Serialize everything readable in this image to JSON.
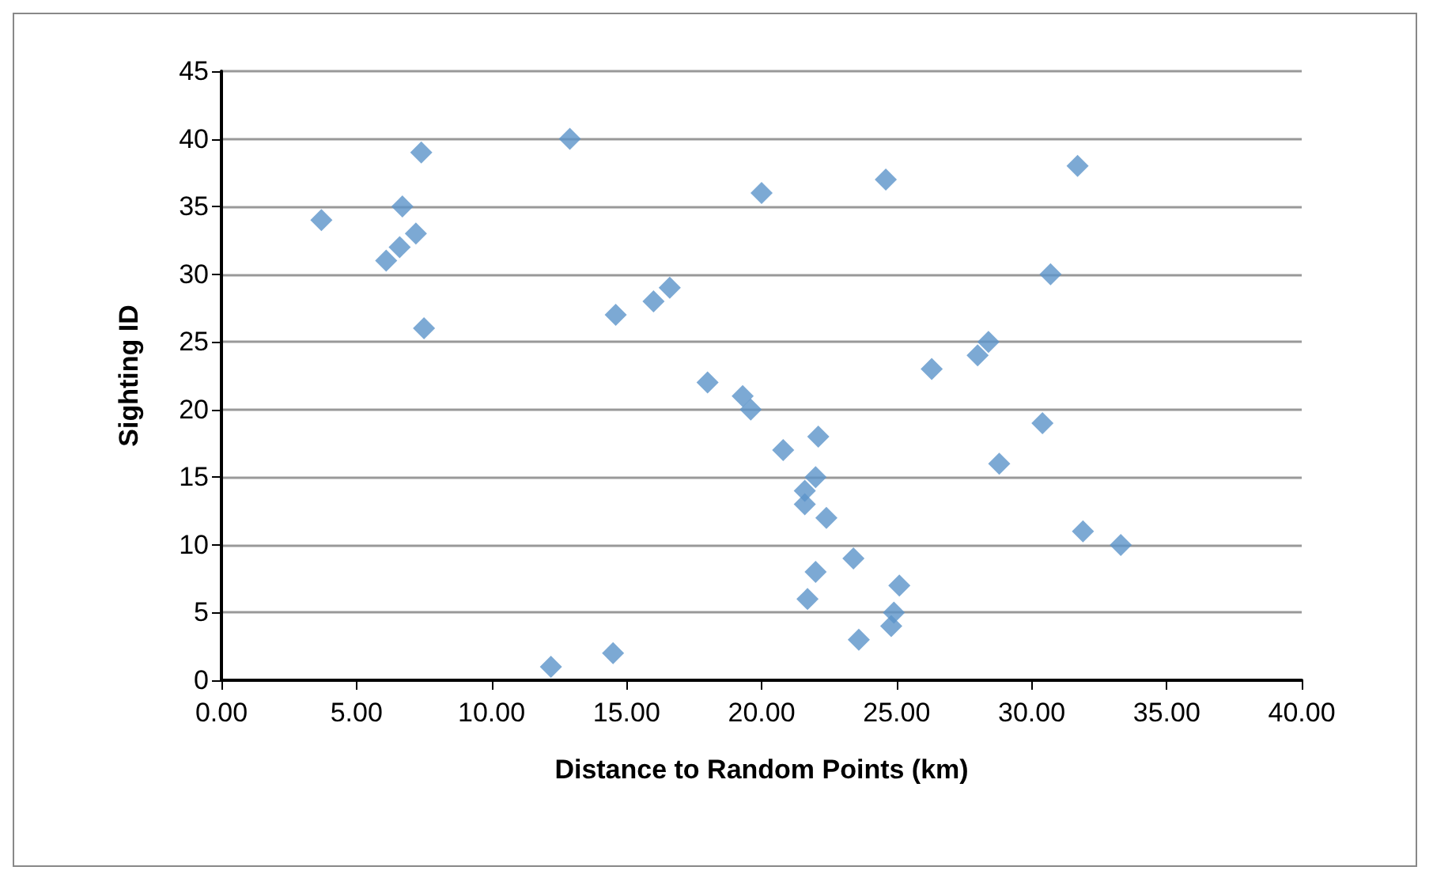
{
  "chart_data": {
    "type": "scatter",
    "xlabel": "Distance to Random Points (km)",
    "ylabel": "Sighting ID",
    "x": [
      12.2,
      14.5,
      23.6,
      24.8,
      24.9,
      21.7,
      25.1,
      22.0,
      23.4,
      33.3,
      31.9,
      22.4,
      21.6,
      21.6,
      22.0,
      28.8,
      20.8,
      22.1,
      30.4,
      19.6,
      19.3,
      18.0,
      26.3,
      28.0,
      28.4,
      7.5,
      14.6,
      16.0,
      16.6,
      30.7,
      6.1,
      6.6,
      7.2,
      3.7,
      6.7,
      20.0,
      24.6,
      31.7,
      7.4,
      12.9
    ],
    "values": [
      1,
      2,
      3,
      4,
      5,
      6,
      7,
      8,
      9,
      10,
      11,
      12,
      13,
      14,
      15,
      16,
      17,
      18,
      19,
      20,
      21,
      22,
      23,
      24,
      25,
      26,
      27,
      28,
      29,
      30,
      31,
      32,
      33,
      34,
      35,
      36,
      37,
      38,
      39,
      40
    ],
    "color": "#5b93c9",
    "marker": "diamond",
    "xlim": [
      0,
      40
    ],
    "xticks": [
      {
        "value": 0,
        "label": "0.00"
      },
      {
        "value": 5,
        "label": "5.00"
      },
      {
        "value": 10,
        "label": "10.00"
      },
      {
        "value": 15,
        "label": "15.00"
      },
      {
        "value": 20,
        "label": "20.00"
      },
      {
        "value": 25,
        "label": "25.00"
      },
      {
        "value": 30,
        "label": "30.00"
      },
      {
        "value": 35,
        "label": "35.00"
      },
      {
        "value": 40,
        "label": "40.00"
      }
    ],
    "ylim": [
      0,
      45
    ],
    "yticks": [
      0,
      5,
      10,
      15,
      20,
      25,
      30,
      35,
      40,
      45
    ],
    "grid": "y"
  }
}
